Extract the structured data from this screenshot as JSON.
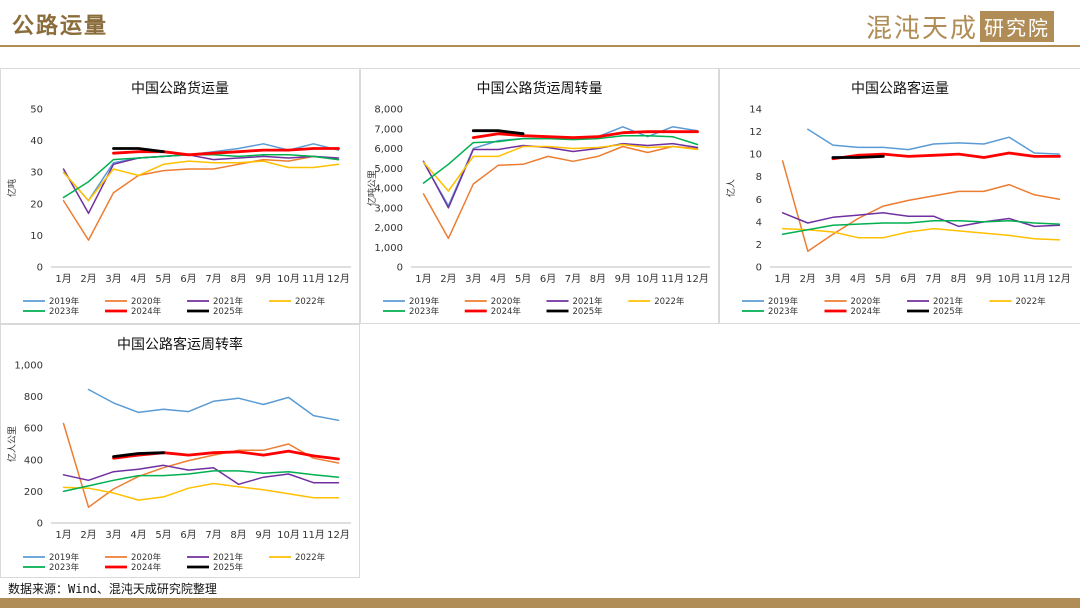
{
  "page": {
    "title": "公路运量",
    "brand_main": "混沌天成",
    "brand_box": "研究院",
    "source": "数据来源：Wind、混沌天成研究院整理",
    "accent_color": "#b08d57"
  },
  "chart_data": [
    {
      "type": "line",
      "title": "中国公路货运量",
      "ylabel": "亿吨",
      "ylim": [
        0,
        50
      ],
      "yticks": [
        0,
        10,
        20,
        30,
        40,
        50
      ],
      "categories": [
        "1月",
        "2月",
        "3月",
        "4月",
        "5月",
        "6月",
        "7月",
        "8月",
        "9月",
        "10月",
        "11月",
        "12月"
      ],
      "series": [
        {
          "name": "2019年",
          "color": "#5b9bd5",
          "width": 1.5,
          "values": [
            30,
            21,
            33,
            34.5,
            35,
            35.5,
            36.5,
            37.5,
            39,
            37,
            39,
            37
          ]
        },
        {
          "name": "2020年",
          "color": "#ed7d31",
          "width": 1.5,
          "values": [
            21,
            8.5,
            23.5,
            29,
            30.5,
            31,
            31,
            32.5,
            34,
            33.5,
            35,
            34
          ]
        },
        {
          "name": "2021年",
          "color": "#7030a0",
          "width": 1.5,
          "values": [
            31,
            17,
            32.5,
            34.5,
            35,
            35.5,
            34,
            34.5,
            35,
            34.5,
            35,
            34.5
          ]
        },
        {
          "name": "2022年",
          "color": "#ffc000",
          "width": 1.5,
          "values": [
            30,
            21,
            31,
            29,
            32.5,
            33.5,
            33,
            33,
            33.5,
            31.5,
            31.5,
            32.5
          ]
        },
        {
          "name": "2023年",
          "color": "#00b050",
          "width": 1.5,
          "values": [
            22,
            27,
            34,
            34.5,
            35,
            35.5,
            35.5,
            35,
            35.5,
            35.5,
            35,
            34
          ]
        },
        {
          "name": "2024年",
          "color": "#ff0000",
          "width": 2.8,
          "values": [
            null,
            null,
            36,
            36.5,
            36.5,
            35.5,
            36,
            36.5,
            37,
            37,
            37.5,
            37.5
          ]
        },
        {
          "name": "2025年",
          "color": "#000000",
          "width": 2.8,
          "values": [
            null,
            null,
            37.5,
            37.5,
            36.5,
            null,
            null,
            null,
            null,
            null,
            null,
            null
          ]
        }
      ]
    },
    {
      "type": "line",
      "title": "中国公路货运周转量",
      "ylabel": "亿吨公里",
      "ylim": [
        0,
        8000
      ],
      "yticks": [
        0,
        1000,
        2000,
        3000,
        4000,
        5000,
        6000,
        7000,
        8000
      ],
      "yticklabels": [
        "0",
        "1,000",
        "2,000",
        "3,000",
        "4,000",
        "5,000",
        "6,000",
        "7,000",
        "8,000"
      ],
      "categories": [
        "1月",
        "2月",
        "3月",
        "4月",
        "5月",
        "6月",
        "7月",
        "8月",
        "9月",
        "10月",
        "11月",
        "12月"
      ],
      "series": [
        {
          "name": "2019年",
          "color": "#5b9bd5",
          "width": 1.5,
          "values": [
            5300,
            3100,
            6000,
            6400,
            6500,
            6500,
            6500,
            6600,
            7100,
            6600,
            7100,
            6900
          ]
        },
        {
          "name": "2020年",
          "color": "#ed7d31",
          "width": 1.5,
          "values": [
            3700,
            1450,
            4200,
            5150,
            5200,
            5600,
            5350,
            5600,
            6100,
            5800,
            6100,
            6000
          ]
        },
        {
          "name": "2021年",
          "color": "#7030a0",
          "width": 1.5,
          "values": [
            5350,
            3000,
            5950,
            5950,
            6150,
            6050,
            5850,
            6000,
            6250,
            6150,
            6250,
            6050
          ]
        },
        {
          "name": "2022年",
          "color": "#ffc000",
          "width": 1.5,
          "values": [
            5300,
            3850,
            5600,
            5600,
            6100,
            6100,
            6000,
            6050,
            6200,
            6050,
            6100,
            5950
          ]
        },
        {
          "name": "2023年",
          "color": "#00b050",
          "width": 1.5,
          "values": [
            4250,
            5200,
            6300,
            6350,
            6500,
            6500,
            6450,
            6500,
            6650,
            6650,
            6600,
            6200
          ]
        },
        {
          "name": "2024年",
          "color": "#ff0000",
          "width": 2.8,
          "values": [
            null,
            null,
            6550,
            6750,
            6650,
            6600,
            6550,
            6600,
            6800,
            6850,
            6850,
            6850
          ]
        },
        {
          "name": "2025年",
          "color": "#000000",
          "width": 2.8,
          "values": [
            null,
            null,
            6900,
            6900,
            6750,
            null,
            null,
            null,
            null,
            null,
            null,
            null
          ]
        }
      ]
    },
    {
      "type": "line",
      "title": "中国公路客运量",
      "ylabel": "亿人",
      "ylim": [
        0,
        14
      ],
      "yticks": [
        0,
        2,
        4,
        6,
        8,
        10,
        12,
        14
      ],
      "categories": [
        "1月",
        "2月",
        "3月",
        "4月",
        "5月",
        "6月",
        "7月",
        "8月",
        "9月",
        "10月",
        "11月",
        "12月"
      ],
      "series": [
        {
          "name": "2019年",
          "color": "#5b9bd5",
          "width": 1.5,
          "values": [
            null,
            12.2,
            10.8,
            10.6,
            10.6,
            10.4,
            10.9,
            11.0,
            10.9,
            11.5,
            10.1,
            10.0
          ]
        },
        {
          "name": "2020年",
          "color": "#ed7d31",
          "width": 1.5,
          "values": [
            9.4,
            1.4,
            2.9,
            4.3,
            5.4,
            5.9,
            6.3,
            6.7,
            6.7,
            7.3,
            6.4,
            6.0
          ]
        },
        {
          "name": "2021年",
          "color": "#7030a0",
          "width": 1.5,
          "values": [
            4.8,
            3.9,
            4.4,
            4.6,
            4.8,
            4.5,
            4.5,
            3.6,
            4.0,
            4.3,
            3.6,
            3.7
          ]
        },
        {
          "name": "2022年",
          "color": "#ffc000",
          "width": 1.5,
          "values": [
            3.4,
            3.3,
            3.1,
            2.6,
            2.6,
            3.1,
            3.4,
            3.2,
            3.0,
            2.8,
            2.5,
            2.4
          ]
        },
        {
          "name": "2023年",
          "color": "#00b050",
          "width": 1.5,
          "values": [
            2.9,
            3.3,
            3.7,
            3.8,
            3.9,
            3.9,
            4.1,
            4.1,
            4.0,
            4.1,
            3.9,
            3.8
          ]
        },
        {
          "name": "2024年",
          "color": "#ff0000",
          "width": 2.8,
          "values": [
            null,
            null,
            9.6,
            9.9,
            10.0,
            9.8,
            9.9,
            10.0,
            9.7,
            10.1,
            9.8,
            9.8
          ]
        },
        {
          "name": "2025年",
          "color": "#000000",
          "width": 2.8,
          "values": [
            null,
            null,
            9.7,
            9.7,
            9.8,
            null,
            null,
            null,
            null,
            null,
            null,
            null
          ]
        }
      ]
    },
    {
      "type": "line",
      "title": "中国公路客运周转率",
      "ylabel": "亿人公里",
      "ylim": [
        0,
        1000
      ],
      "yticks": [
        0,
        200,
        400,
        600,
        800,
        1000
      ],
      "yticklabels": [
        "0",
        "200",
        "400",
        "600",
        "800",
        "1,000"
      ],
      "categories": [
        "1月",
        "2月",
        "3月",
        "4月",
        "5月",
        "6月",
        "7月",
        "8月",
        "9月",
        "10月",
        "11月",
        "12月"
      ],
      "series": [
        {
          "name": "2019年",
          "color": "#5b9bd5",
          "width": 1.5,
          "values": [
            null,
            845,
            760,
            700,
            720,
            705,
            770,
            790,
            750,
            795,
            680,
            650
          ]
        },
        {
          "name": "2020年",
          "color": "#ed7d31",
          "width": 1.5,
          "values": [
            630,
            100,
            215,
            295,
            350,
            395,
            430,
            460,
            460,
            500,
            410,
            380
          ]
        },
        {
          "name": "2021年",
          "color": "#7030a0",
          "width": 1.5,
          "values": [
            305,
            270,
            325,
            340,
            365,
            335,
            350,
            245,
            290,
            310,
            255,
            255
          ]
        },
        {
          "name": "2022年",
          "color": "#ffc000",
          "width": 1.5,
          "values": [
            225,
            220,
            190,
            145,
            165,
            220,
            250,
            230,
            210,
            185,
            160,
            160
          ]
        },
        {
          "name": "2023年",
          "color": "#00b050",
          "width": 1.5,
          "values": [
            200,
            235,
            270,
            300,
            300,
            310,
            330,
            330,
            315,
            325,
            305,
            290
          ]
        },
        {
          "name": "2024年",
          "color": "#ff0000",
          "width": 2.8,
          "values": [
            null,
            null,
            410,
            430,
            445,
            430,
            445,
            450,
            430,
            455,
            425,
            405
          ]
        },
        {
          "name": "2025年",
          "color": "#000000",
          "width": 2.8,
          "values": [
            null,
            null,
            420,
            440,
            445,
            null,
            null,
            null,
            null,
            null,
            null,
            null
          ]
        }
      ]
    }
  ]
}
